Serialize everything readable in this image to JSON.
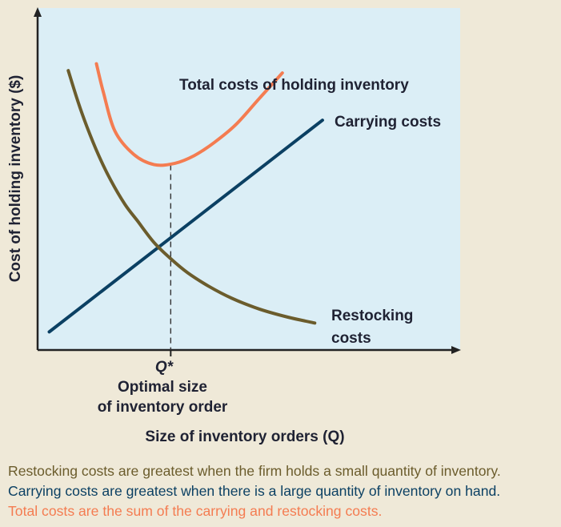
{
  "colors": {
    "plot_background": "#dbeef6",
    "page_background": "#efe9d8",
    "axis": "#222222",
    "total": "#f47c51",
    "carrying": "#0b4063",
    "restocking": "#6b5c2c",
    "caption_restocking": "#6b5c2c",
    "caption_carrying": "#0b4063",
    "caption_total": "#f47c51"
  },
  "chart_data": {
    "type": "line",
    "title": "",
    "xlabel": "Size of inventory orders (Q)",
    "ylabel": "Cost of holding inventory ($)",
    "xlim": [
      0,
      12
    ],
    "ylim": [
      0,
      10
    ],
    "grid": false,
    "axis_numbers_shown": false,
    "series": [
      {
        "name": "Total costs of holding inventory",
        "color_key": "total",
        "x": [
          1.67,
          1.86,
          2.19,
          2.73,
          3.31,
          3.9,
          4.44,
          5.02,
          5.63,
          6.29,
          6.95
        ],
        "y": [
          8.37,
          7.57,
          6.41,
          5.72,
          5.42,
          5.46,
          5.68,
          6.07,
          6.59,
          7.35,
          8.1
        ]
      },
      {
        "name": "Carrying costs",
        "color_key": "carrying",
        "x": [
          0.33,
          8.09
        ],
        "y": [
          0.53,
          6.72
        ]
      },
      {
        "name": "Restocking costs",
        "color_key": "restocking",
        "x": [
          0.87,
          1.14,
          1.4,
          1.73,
          2.08,
          2.48,
          2.84,
          3.31,
          3.78,
          4.26,
          4.85,
          5.52,
          6.29,
          7.11,
          7.87
        ],
        "y": [
          8.17,
          7.28,
          6.53,
          5.7,
          4.96,
          4.26,
          3.77,
          3.14,
          2.67,
          2.26,
          1.87,
          1.51,
          1.2,
          0.96,
          0.79
        ]
      }
    ],
    "reference_line": {
      "x": 3.78,
      "from_y": 0,
      "to_y": 5.42,
      "style": "dashed"
    },
    "optimum": {
      "x": 3.78,
      "y": 2.67
    },
    "annotations": {
      "q_star": "Q*",
      "optimal_line1": "Optimal size",
      "optimal_line2": "of inventory order",
      "total_label": "Total costs of holding inventory",
      "carrying_label": "Carrying costs",
      "restocking_line1": "Restocking",
      "restocking_line2": "costs"
    }
  },
  "caption": {
    "restocking": "Restocking costs are greatest when the firm holds a small quantity of inventory.",
    "carrying": "Carrying costs are greatest when there is a large quantity of inventory on hand.",
    "total": "Total costs are the sum of the carrying and restocking costs."
  }
}
